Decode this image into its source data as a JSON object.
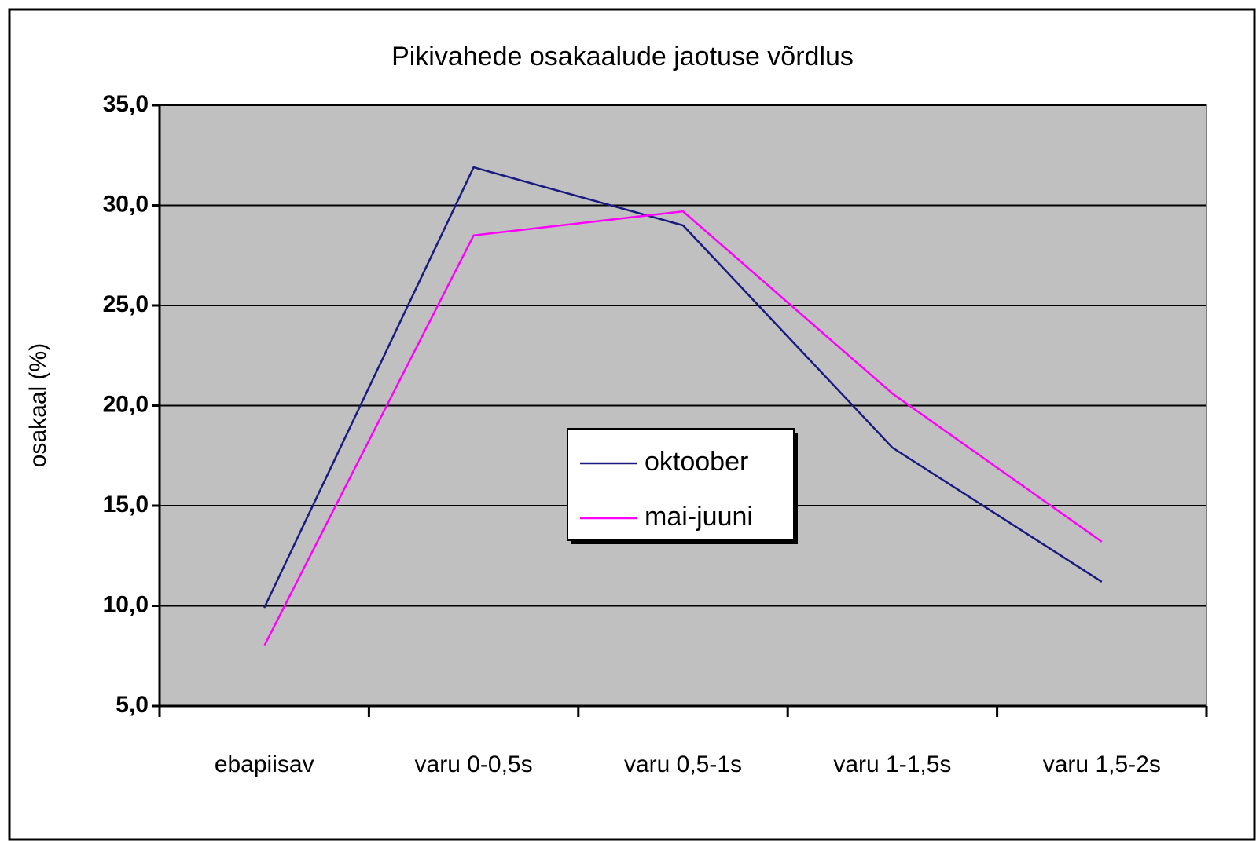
{
  "chart_data": {
    "type": "line",
    "title": "Pikivahede osakaalude jaotuse võrdlus",
    "y_label": "osakaal (%)",
    "categories": [
      "ebapiisav",
      "varu 0-0,5s",
      "varu 0,5-1s",
      "varu 1-1,5s",
      "varu 1,5-2s"
    ],
    "series": [
      {
        "name": "oktoober",
        "color": "#1a1a80",
        "values": [
          9.9,
          31.9,
          29.0,
          17.9,
          11.2
        ]
      },
      {
        "name": "mai-juuni",
        "color": "#ff00ff",
        "values": [
          8.0,
          28.5,
          29.7,
          20.6,
          13.2
        ]
      }
    ],
    "ylim": [
      5,
      35
    ],
    "yticks": [
      {
        "value": 5,
        "label": "5,0"
      },
      {
        "value": 10,
        "label": "10,0"
      },
      {
        "value": 15,
        "label": "15,0"
      },
      {
        "value": 20,
        "label": "20,0"
      },
      {
        "value": 25,
        "label": "25,0"
      },
      {
        "value": 30,
        "label": "30,0"
      },
      {
        "value": 35,
        "label": "35,0"
      }
    ],
    "grid": true,
    "plot_background": "#c0c0c0"
  }
}
